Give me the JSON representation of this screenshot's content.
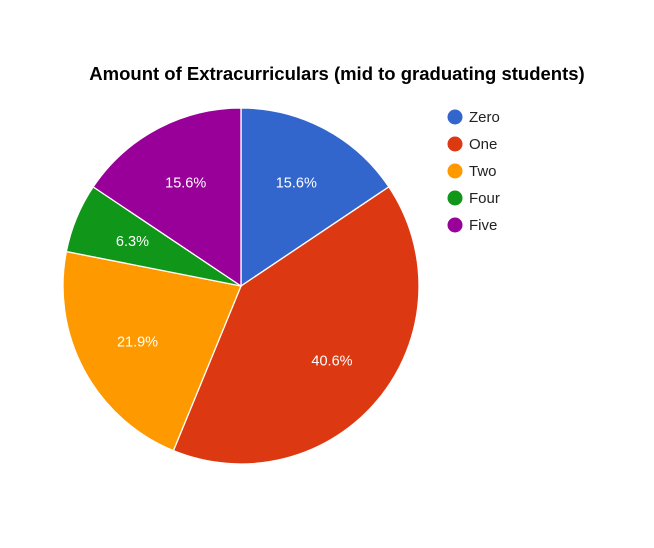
{
  "chart_data": {
    "type": "pie",
    "title": "Amount of Extracurriculars (mid to graduating students)",
    "legend_position": "right",
    "slices": [
      {
        "label": "Zero",
        "value": 15.6,
        "display": "15.6%",
        "color": "#3366cc"
      },
      {
        "label": "One",
        "value": 40.6,
        "display": "40.6%",
        "color": "#dc3912"
      },
      {
        "label": "Two",
        "value": 21.9,
        "display": "21.9%",
        "color": "#ff9900"
      },
      {
        "label": "Four",
        "value": 6.3,
        "display": "6.3%",
        "color": "#109618"
      },
      {
        "label": "Five",
        "value": 15.6,
        "display": "15.6%",
        "color": "#990099"
      }
    ]
  }
}
